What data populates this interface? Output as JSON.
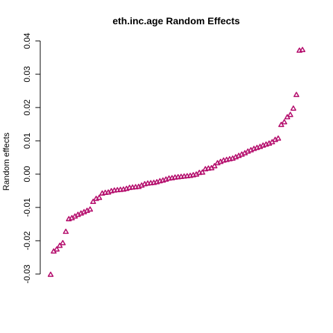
{
  "chart_data": {
    "type": "scatter",
    "title": "eth.inc.age Random Effects",
    "xlabel": "",
    "ylabel": "Random effects",
    "ylim": [
      -0.03,
      0.04
    ],
    "yticks": [
      "-0.03",
      "-0.02",
      "-0.01",
      "0.00",
      "0.01",
      "0.02",
      "0.03",
      "0.04"
    ],
    "ytick_values": [
      -0.03,
      -0.02,
      -0.01,
      0.0,
      0.01,
      0.02,
      0.03,
      0.04
    ],
    "x_axis_shown": false,
    "grid": false,
    "marker": "triangle-open",
    "color": "#b5106e",
    "series": [
      {
        "values": [
          -0.0302,
          -0.0232,
          -0.0226,
          -0.0215,
          -0.0207,
          -0.0173,
          -0.0135,
          -0.0132,
          -0.0127,
          -0.0122,
          -0.0118,
          -0.0114,
          -0.011,
          -0.0106,
          -0.0083,
          -0.0074,
          -0.0071,
          -0.0058,
          -0.0056,
          -0.0055,
          -0.0051,
          -0.0049,
          -0.0048,
          -0.0047,
          -0.0046,
          -0.0044,
          -0.0041,
          -0.004,
          -0.0039,
          -0.0038,
          -0.0034,
          -0.003,
          -0.0028,
          -0.0027,
          -0.0026,
          -0.0024,
          -0.0021,
          -0.0019,
          -0.0016,
          -0.0013,
          -0.0012,
          -0.001,
          -0.0009,
          -0.0008,
          -0.0007,
          -0.0006,
          -0.0005,
          -0.0003,
          -0.0001,
          0.0004,
          0.0005,
          0.0015,
          0.0017,
          0.0018,
          0.0024,
          0.0033,
          0.0037,
          0.0041,
          0.0043,
          0.0045,
          0.0047,
          0.0051,
          0.0055,
          0.0059,
          0.0063,
          0.0068,
          0.0072,
          0.0076,
          0.0079,
          0.0082,
          0.0086,
          0.0089,
          0.0092,
          0.0096,
          0.0103,
          0.0107,
          0.0148,
          0.0156,
          0.0171,
          0.0178,
          0.0197,
          0.0238,
          0.0371,
          0.0373
        ]
      }
    ]
  }
}
